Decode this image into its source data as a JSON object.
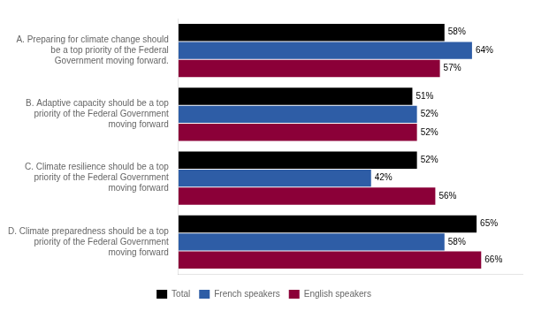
{
  "chart_data": {
    "type": "bar",
    "orientation": "horizontal",
    "categories": [
      "A. Preparing for climate change should\nbe a top priority of the Federal\nGovernment moving forward.",
      "B. Adaptive capacity should be a top\npriority of the Federal Government\nmoving forward",
      "C. Climate resilience should be a top\npriority of the Federal Government\nmoving forward",
      "D. Climate preparedness should be a top\npriority of the Federal Government\nmoving forward"
    ],
    "series": [
      {
        "name": "Total",
        "color": "#000000",
        "values": [
          58,
          51,
          52,
          65
        ],
        "value_labels": [
          "58%",
          "51%",
          "52%",
          "65%"
        ]
      },
      {
        "name": "French speakers",
        "color": "#2E5DA6",
        "values": [
          64,
          52,
          42,
          58
        ],
        "value_labels": [
          "64%",
          "52%",
          "42%",
          "58%"
        ]
      },
      {
        "name": "English speakers",
        "color": "#8B0038",
        "values": [
          57,
          52,
          56,
          66
        ],
        "value_labels": [
          "57%",
          "52%",
          "56%",
          "66%"
        ]
      }
    ],
    "xlim": [
      0,
      75
    ],
    "data_labels": true,
    "tick_labels": "y",
    "legend": "bottom",
    "grid": false
  }
}
